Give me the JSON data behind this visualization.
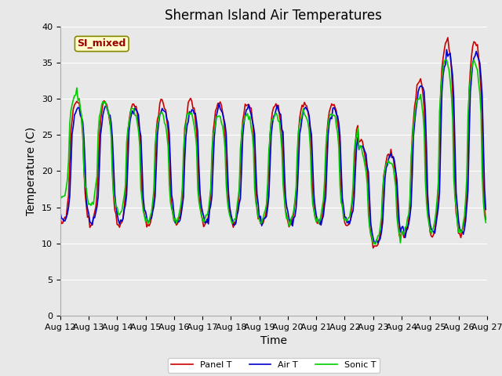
{
  "title": "Sherman Island Air Temperatures",
  "xlabel": "Time",
  "ylabel": "Temperature (C)",
  "ylim": [
    0,
    40
  ],
  "yticks": [
    0,
    5,
    10,
    15,
    20,
    25,
    30,
    35,
    40
  ],
  "xtick_labels": [
    "Aug 12",
    "Aug 13",
    "Aug 14",
    "Aug 15",
    "Aug 16",
    "Aug 17",
    "Aug 18",
    "Aug 19",
    "Aug 20",
    "Aug 21",
    "Aug 22",
    "Aug 23",
    "Aug 24",
    "Aug 25",
    "Aug 26",
    "Aug 27"
  ],
  "annotation_text": "SI_mixed",
  "line_colors": {
    "panel": "#cc0000",
    "air": "#0000cc",
    "sonic": "#00cc00"
  },
  "legend_labels": [
    "Panel T",
    "Air T",
    "Sonic T"
  ],
  "plot_bg_color": "#e8e8e8",
  "grid_color": "#ffffff",
  "title_fontsize": 12,
  "axis_fontsize": 10,
  "tick_fontsize": 8,
  "linewidth": 1.2
}
